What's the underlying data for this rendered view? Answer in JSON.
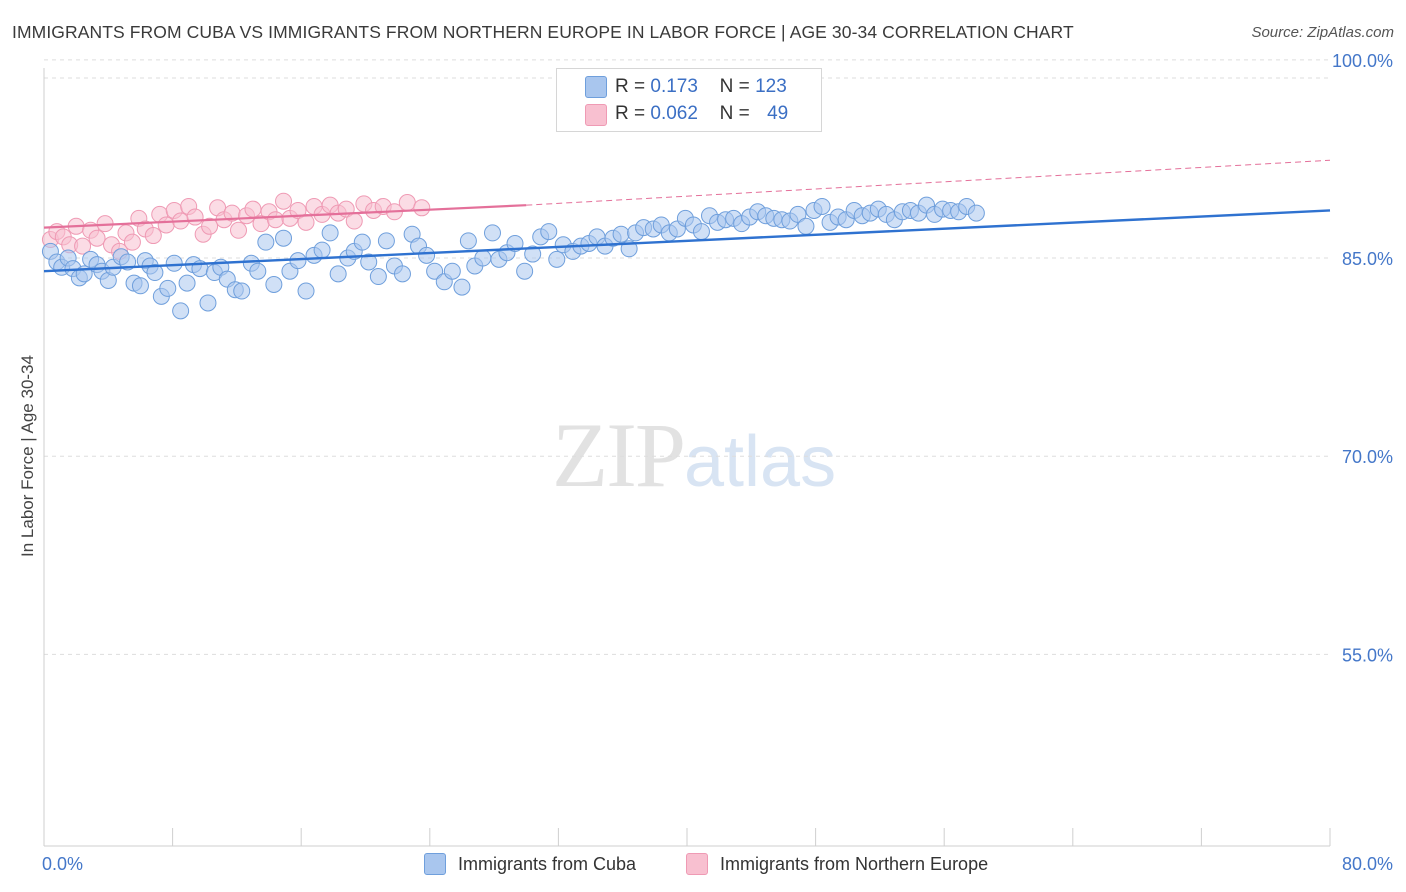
{
  "title": "IMMIGRANTS FROM CUBA VS IMMIGRANTS FROM NORTHERN EUROPE IN LABOR FORCE | AGE 30-34 CORRELATION CHART",
  "source": "Source: ZipAtlas.com",
  "watermark": {
    "zip": "ZIP",
    "atlas": "atlas"
  },
  "legend": {
    "r_label": "R =",
    "n_label": "N =",
    "rows": [
      {
        "r": "0.173",
        "n": "123"
      },
      {
        "r": "0.062",
        "n": "49"
      }
    ]
  },
  "colors": {
    "cuba_fill": "#a9c6ee",
    "cuba_stroke": "#6f9fdc",
    "cuba_line": "#2f72d0",
    "ne_fill": "#f8c0d0",
    "ne_stroke": "#ef9ab4",
    "ne_line": "#e4709a",
    "axis_label": "#4477c9",
    "grid": "#dddddd"
  },
  "chart_data": {
    "type": "scatter",
    "title": "IMMIGRANTS FROM CUBA VS IMMIGRANTS FROM NORTHERN EUROPE IN LABOR FORCE | AGE 30-34 CORRELATION CHART",
    "xlabel": "",
    "ylabel": "In Labor Force | Age 30-34",
    "xlim": [
      0,
      80
    ],
    "ylim": [
      40.5,
      101.5
    ],
    "x_tick_labels": [
      "0.0%",
      "80.0%"
    ],
    "y_ticks": [
      55,
      70,
      85,
      100
    ],
    "y_tick_labels": [
      "55.0%",
      "70.0%",
      "85.0%",
      "100.0%"
    ],
    "grid": true,
    "legend_position": "bottom",
    "series": [
      {
        "name": "Immigrants from Cuba",
        "r": 0.173,
        "n": 123,
        "trend": {
          "x": [
            0,
            80
          ],
          "y": [
            84.0,
            88.6
          ]
        },
        "points": [
          [
            0.4,
            85.5
          ],
          [
            0.8,
            84.7
          ],
          [
            1.1,
            84.3
          ],
          [
            1.5,
            85.0
          ],
          [
            1.8,
            84.2
          ],
          [
            2.2,
            83.5
          ],
          [
            2.5,
            83.8
          ],
          [
            2.9,
            84.9
          ],
          [
            3.3,
            84.5
          ],
          [
            3.6,
            84.0
          ],
          [
            4.0,
            83.3
          ],
          [
            4.3,
            84.3
          ],
          [
            4.8,
            85.1
          ],
          [
            5.2,
            84.7
          ],
          [
            5.6,
            83.1
          ],
          [
            6.0,
            82.9
          ],
          [
            6.3,
            84.8
          ],
          [
            6.6,
            84.4
          ],
          [
            6.9,
            83.9
          ],
          [
            7.3,
            82.1
          ],
          [
            7.7,
            82.7
          ],
          [
            8.1,
            84.6
          ],
          [
            8.5,
            81.0
          ],
          [
            8.9,
            83.1
          ],
          [
            9.3,
            84.5
          ],
          [
            9.7,
            84.2
          ],
          [
            10.2,
            81.6
          ],
          [
            10.6,
            83.9
          ],
          [
            11.0,
            84.3
          ],
          [
            11.4,
            83.4
          ],
          [
            11.9,
            82.6
          ],
          [
            12.3,
            82.5
          ],
          [
            12.9,
            84.6
          ],
          [
            13.3,
            84.0
          ],
          [
            13.8,
            86.2
          ],
          [
            14.3,
            83.0
          ],
          [
            14.9,
            86.5
          ],
          [
            15.3,
            84.0
          ],
          [
            15.8,
            84.8
          ],
          [
            16.3,
            82.5
          ],
          [
            16.8,
            85.2
          ],
          [
            17.3,
            85.6
          ],
          [
            17.8,
            86.9
          ],
          [
            18.3,
            83.8
          ],
          [
            18.9,
            85.0
          ],
          [
            19.3,
            85.5
          ],
          [
            19.8,
            86.2
          ],
          [
            20.2,
            84.7
          ],
          [
            20.8,
            83.6
          ],
          [
            21.3,
            86.3
          ],
          [
            21.8,
            84.4
          ],
          [
            22.3,
            83.8
          ],
          [
            22.9,
            86.8
          ],
          [
            23.3,
            85.9
          ],
          [
            23.8,
            85.2
          ],
          [
            24.3,
            84.0
          ],
          [
            24.9,
            83.2
          ],
          [
            25.4,
            84.0
          ],
          [
            26.0,
            82.8
          ],
          [
            26.4,
            86.3
          ],
          [
            26.8,
            84.4
          ],
          [
            27.3,
            85.0
          ],
          [
            27.9,
            86.9
          ],
          [
            28.3,
            84.9
          ],
          [
            28.8,
            85.4
          ],
          [
            29.3,
            86.1
          ],
          [
            29.9,
            84.0
          ],
          [
            30.4,
            85.3
          ],
          [
            30.9,
            86.6
          ],
          [
            31.4,
            87.0
          ],
          [
            31.9,
            84.9
          ],
          [
            32.3,
            86.0
          ],
          [
            32.9,
            85.5
          ],
          [
            33.4,
            85.9
          ],
          [
            33.9,
            86.1
          ],
          [
            34.4,
            86.6
          ],
          [
            34.9,
            85.9
          ],
          [
            35.4,
            86.5
          ],
          [
            35.9,
            86.8
          ],
          [
            36.4,
            85.7
          ],
          [
            36.8,
            86.9
          ],
          [
            37.3,
            87.3
          ],
          [
            37.9,
            87.2
          ],
          [
            38.4,
            87.5
          ],
          [
            38.9,
            86.9
          ],
          [
            39.4,
            87.2
          ],
          [
            39.9,
            88.0
          ],
          [
            40.4,
            87.5
          ],
          [
            40.9,
            87.0
          ],
          [
            41.4,
            88.2
          ],
          [
            41.9,
            87.7
          ],
          [
            42.4,
            87.9
          ],
          [
            42.9,
            88.0
          ],
          [
            43.4,
            87.6
          ],
          [
            43.9,
            88.1
          ],
          [
            44.4,
            88.5
          ],
          [
            44.9,
            88.2
          ],
          [
            45.4,
            88.0
          ],
          [
            45.9,
            87.9
          ],
          [
            46.4,
            87.8
          ],
          [
            46.9,
            88.3
          ],
          [
            47.4,
            87.4
          ],
          [
            47.9,
            88.6
          ],
          [
            48.4,
            88.9
          ],
          [
            48.9,
            87.7
          ],
          [
            49.4,
            88.1
          ],
          [
            49.9,
            87.9
          ],
          [
            50.4,
            88.6
          ],
          [
            50.9,
            88.2
          ],
          [
            51.4,
            88.4
          ],
          [
            51.9,
            88.7
          ],
          [
            52.4,
            88.3
          ],
          [
            52.9,
            87.9
          ],
          [
            53.4,
            88.5
          ],
          [
            53.9,
            88.6
          ],
          [
            54.4,
            88.4
          ],
          [
            54.9,
            89.0
          ],
          [
            55.4,
            88.3
          ],
          [
            55.9,
            88.7
          ],
          [
            56.4,
            88.6
          ],
          [
            56.9,
            88.5
          ],
          [
            57.4,
            88.9
          ],
          [
            58.0,
            88.4
          ]
        ]
      },
      {
        "name": "Immigrants from Northern Europe",
        "r": 0.062,
        "n": 49,
        "trend": {
          "x": [
            0,
            30
          ],
          "y": [
            87.3,
            89.0
          ]
        },
        "trend_dashed": {
          "x": [
            30,
            80
          ],
          "y": [
            89.0,
            92.4
          ]
        },
        "points": [
          [
            0.4,
            86.4
          ],
          [
            0.8,
            87.0
          ],
          [
            1.2,
            86.6
          ],
          [
            1.6,
            86.0
          ],
          [
            2.0,
            87.4
          ],
          [
            2.4,
            85.9
          ],
          [
            2.9,
            87.1
          ],
          [
            3.3,
            86.5
          ],
          [
            3.8,
            87.6
          ],
          [
            4.2,
            86.0
          ],
          [
            4.7,
            85.5
          ],
          [
            5.1,
            86.9
          ],
          [
            5.5,
            86.2
          ],
          [
            5.9,
            88.0
          ],
          [
            6.3,
            87.2
          ],
          [
            6.8,
            86.7
          ],
          [
            7.2,
            88.3
          ],
          [
            7.6,
            87.5
          ],
          [
            8.1,
            88.6
          ],
          [
            8.5,
            87.8
          ],
          [
            9.0,
            88.9
          ],
          [
            9.4,
            88.1
          ],
          [
            9.9,
            86.8
          ],
          [
            10.3,
            87.4
          ],
          [
            10.8,
            88.8
          ],
          [
            11.2,
            87.9
          ],
          [
            11.7,
            88.4
          ],
          [
            12.1,
            87.1
          ],
          [
            12.6,
            88.2
          ],
          [
            13.0,
            88.7
          ],
          [
            13.5,
            87.6
          ],
          [
            14.0,
            88.5
          ],
          [
            14.4,
            87.9
          ],
          [
            14.9,
            89.3
          ],
          [
            15.3,
            88.0
          ],
          [
            15.8,
            88.6
          ],
          [
            16.3,
            87.7
          ],
          [
            16.8,
            88.9
          ],
          [
            17.3,
            88.3
          ],
          [
            17.8,
            89.0
          ],
          [
            18.3,
            88.4
          ],
          [
            18.8,
            88.7
          ],
          [
            19.3,
            87.8
          ],
          [
            19.9,
            89.1
          ],
          [
            20.5,
            88.6
          ],
          [
            21.1,
            88.9
          ],
          [
            21.8,
            88.5
          ],
          [
            22.6,
            89.2
          ],
          [
            23.5,
            88.8
          ]
        ]
      }
    ]
  }
}
